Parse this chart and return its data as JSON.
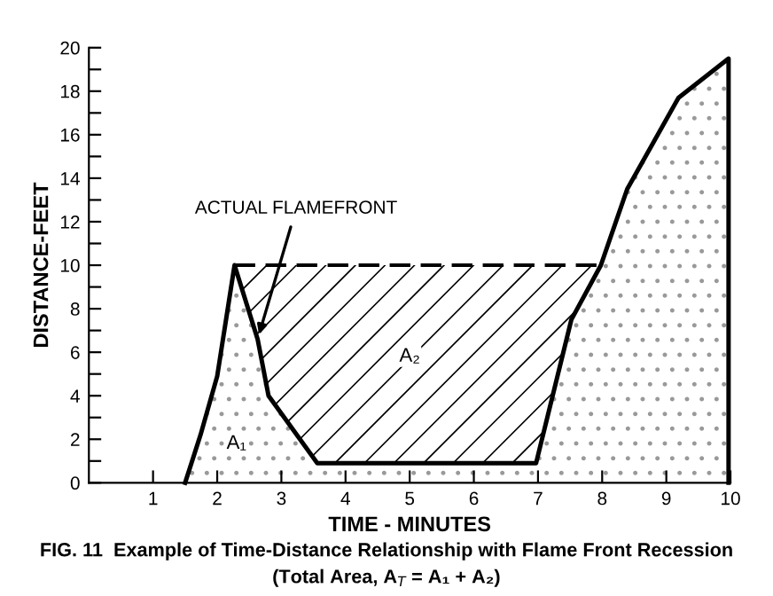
{
  "chart_data": {
    "type": "area",
    "title": "FIG. 11  Example of Time-Distance Relationship with Flame Front Recession",
    "subtitle": "(Total Area, A$_{T}$ = A₁ + A₂)",
    "xlabel": "TIME - MINUTES",
    "ylabel": "DISTANCE-FEET",
    "series": [
      {
        "color": "#000000",
        "x": [
          1.5,
          1.74,
          2.0,
          2.27,
          2.63,
          2.8,
          3.56,
          6.97,
          7.52,
          7.98,
          8.39,
          9.19,
          9.97,
          9.97
        ],
        "values": [
          0,
          2.2,
          4.9,
          10,
          6.6,
          4,
          0.9,
          0.9,
          7.5,
          10,
          13.5,
          17.7,
          19.5,
          0
        ]
      },
      {
        "type": "line",
        "color": "#000000",
        "line_style": "dashed",
        "x": [
          2.27,
          2.63,
          2.8,
          3.56,
          6.97,
          7.52,
          7.98
        ],
        "values": [
          10,
          10,
          10,
          10,
          10,
          10,
          10
        ],
        "lower": [
          10,
          6.6,
          4,
          0.9,
          0.9,
          7.5,
          10
        ],
        "upper": [
          10,
          10,
          10,
          10,
          10,
          10,
          10
        ]
      }
    ],
    "annotations": [
      {
        "text": "ACTUAL FLAMEFRONT",
        "x": 2.63,
        "y": 6.6
      },
      "A₁",
      "A₂"
    ],
    "xlim": [
      0,
      10
    ],
    "ylim": [
      0,
      20
    ],
    "xticks": [
      1,
      2,
      3,
      4,
      5,
      6,
      7,
      8,
      9,
      10
    ],
    "yticks": [
      0,
      {
        "value": 1,
        "label": null
      },
      2,
      {
        "value": 3,
        "label": null
      },
      4,
      {
        "value": 5,
        "label": null
      },
      6,
      {
        "value": 7,
        "label": null
      },
      8,
      {
        "value": 9,
        "label": null
      },
      10,
      {
        "value": 11,
        "label": null
      },
      12,
      {
        "value": 13,
        "label": null
      },
      14,
      {
        "value": 15,
        "label": null
      },
      16,
      {
        "value": 17,
        "label": null
      },
      18,
      {
        "value": 19,
        "label": null
      },
      20
    ],
    "grid": false,
    "legend": false,
    "marker": "none"
  }
}
